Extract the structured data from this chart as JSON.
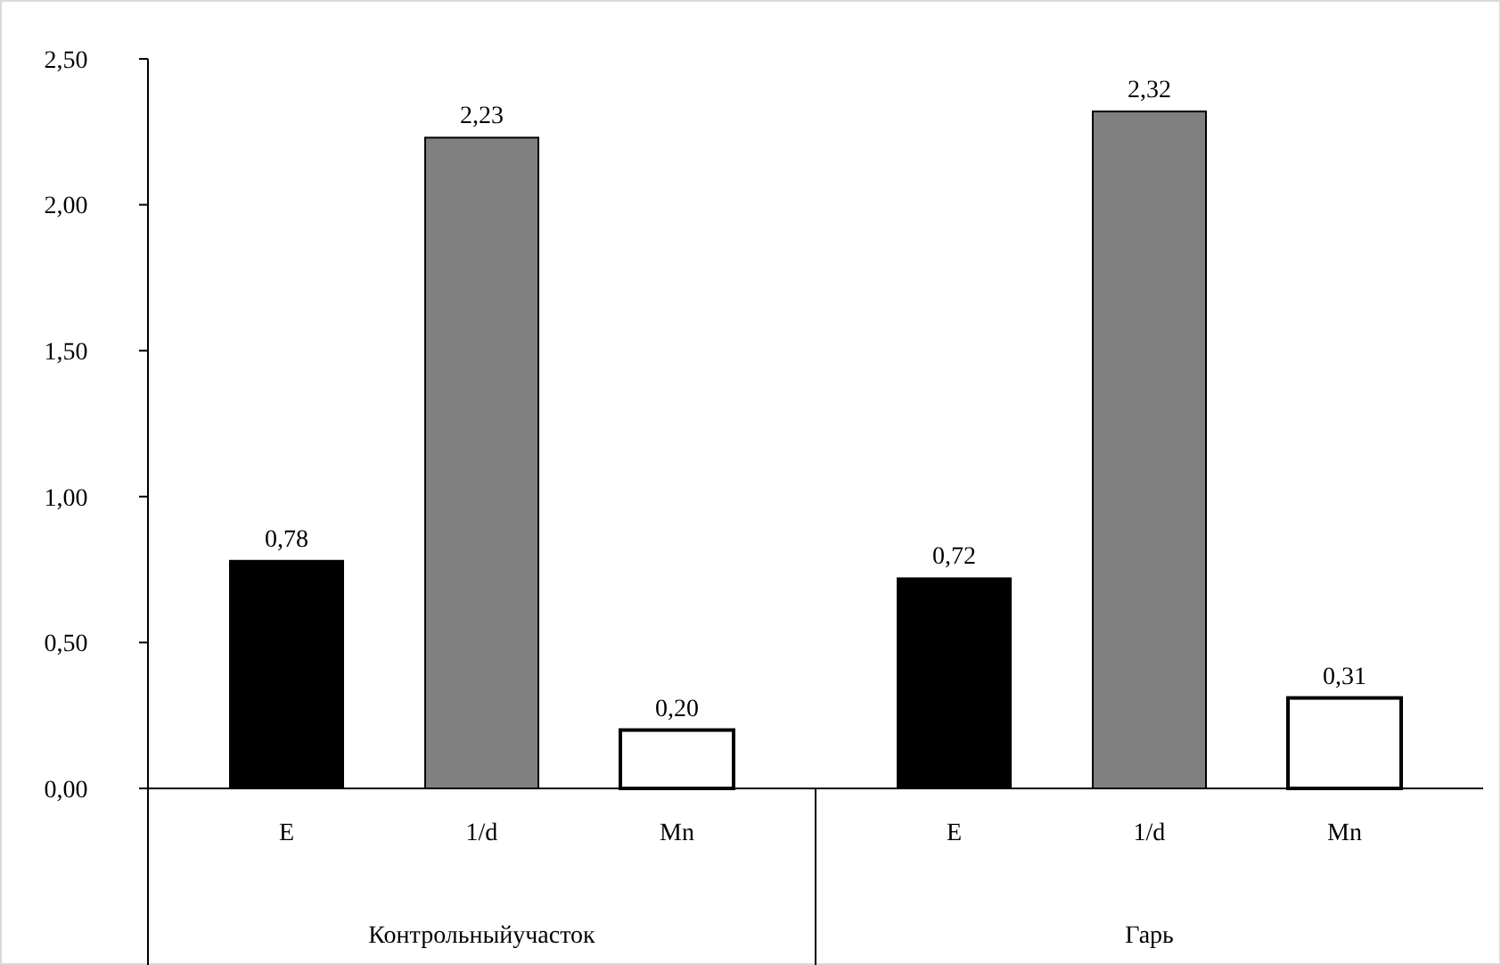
{
  "chart_data": {
    "type": "bar",
    "categories": [
      "Контрольныйучасток",
      "Гарь"
    ],
    "series": [
      {
        "name": "E",
        "color": "#000000",
        "values": [
          0.78,
          0.72
        ],
        "value_labels": [
          "0,78",
          "0,72"
        ]
      },
      {
        "name": "1/d",
        "color": "#808080",
        "values": [
          2.23,
          2.32
        ],
        "value_labels": [
          "2,23",
          "2,32"
        ]
      },
      {
        "name": "Mn",
        "color": "#ffffff",
        "values": [
          0.2,
          0.31
        ],
        "value_labels": [
          "0,20",
          "0,31"
        ]
      }
    ],
    "ylim": [
      0,
      2.5
    ],
    "yticks": [
      {
        "value": 0,
        "label": "0,00"
      },
      {
        "value": 0.5,
        "label": "0,50"
      },
      {
        "value": 1,
        "label": "1,00"
      },
      {
        "value": 1.5,
        "label": "1,50"
      },
      {
        "value": 2,
        "label": "2,00"
      },
      {
        "value": 2.5,
        "label": "2,50"
      }
    ],
    "tick_labels": "y"
  }
}
